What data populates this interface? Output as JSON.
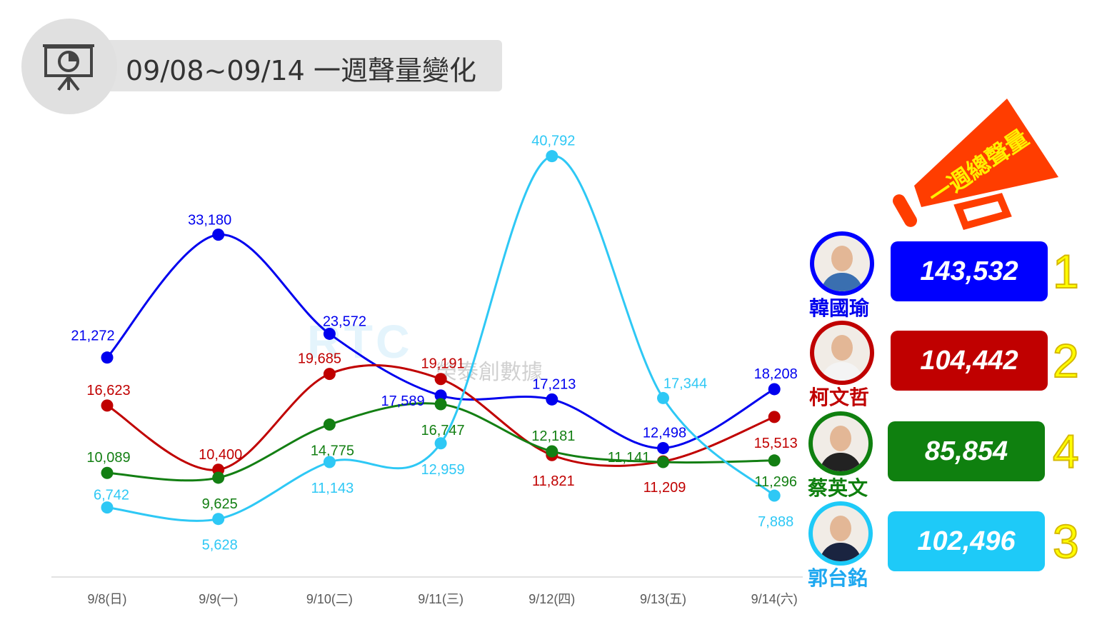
{
  "header": {
    "title": "09/08~09/14 一週聲量變化",
    "icon": "presentation-chart-icon"
  },
  "watermark": {
    "logo": "RTC",
    "text": "榮泰創數據"
  },
  "megaphone": {
    "text": "一週總聲量",
    "color": "#ff3d00"
  },
  "chart_data": {
    "type": "line",
    "title": "09/08~09/14 一週聲量變化",
    "categories": [
      "9/8(日)",
      "9/9(一)",
      "9/10(二)",
      "9/11(三)",
      "9/12(四)",
      "9/13(五)",
      "9/14(六)"
    ],
    "ylim": [
      0,
      42000
    ],
    "grid": false,
    "series": [
      {
        "name": "韓國瑜",
        "color": "#0000ee",
        "values": [
          21272,
          33180,
          23572,
          17589,
          17213,
          12498,
          18208
        ],
        "labels": [
          "21,272",
          "33,180",
          "23,572",
          "17,589",
          "17,213",
          "12,498",
          "18,208"
        ]
      },
      {
        "name": "柯文哲",
        "color": "#c00000",
        "values": [
          16623,
          10400,
          19685,
          19191,
          11821,
          11209,
          15513
        ],
        "labels": [
          "16,623",
          "10,400",
          "19,685",
          "19,191",
          "11,821",
          "11,209",
          "15,513"
        ]
      },
      {
        "name": "蔡英文",
        "color": "#137f13",
        "values": [
          10089,
          9625,
          14775,
          16747,
          12181,
          11141,
          11296
        ],
        "labels": [
          "10,089",
          "9,625",
          "14,775",
          "16,747",
          "12,181",
          "11,141",
          "11,296"
        ]
      },
      {
        "name": "郭台銘",
        "color": "#2ec8f5",
        "values": [
          6742,
          5628,
          11143,
          12959,
          40792,
          17344,
          7888
        ],
        "labels": [
          "6,742",
          "5,628",
          "11,143",
          "12,959",
          "40,792",
          "17,344",
          "7,888"
        ]
      }
    ]
  },
  "legend": [
    {
      "name": "韓國瑜",
      "total": "143,532",
      "rank": "1",
      "color": "#0000ff",
      "nameColor": "#0000ee"
    },
    {
      "name": "柯文哲",
      "total": "104,442",
      "rank": "2",
      "color": "#c00000",
      "nameColor": "#c00000"
    },
    {
      "name": "蔡英文",
      "total": "85,854",
      "rank": "4",
      "color": "#0f800f",
      "nameColor": "#0f800f"
    },
    {
      "name": "郭台銘",
      "total": "102,496",
      "rank": "3",
      "color": "#1ecaf8",
      "nameColor": "#1ea8f0"
    }
  ]
}
